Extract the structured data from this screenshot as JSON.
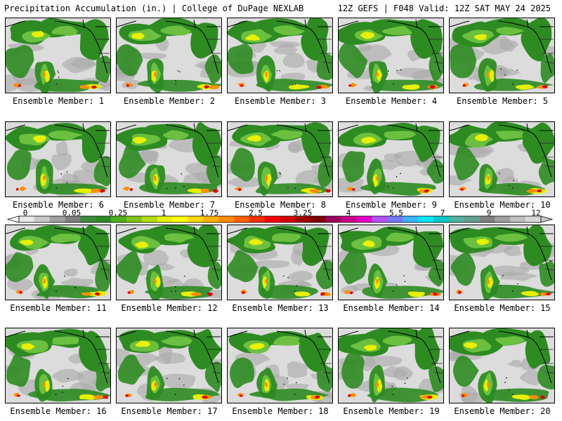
{
  "header": {
    "left": "Precipitation Accumulation (in.) | College of DuPage NEXLAB",
    "right": "12Z GEFS | F048 Valid: 12Z SAT MAY 24 2025"
  },
  "panels": [
    {
      "label": "Ensemble Member: 1"
    },
    {
      "label": "Ensemble Member: 2"
    },
    {
      "label": "Ensemble Member: 3"
    },
    {
      "label": "Ensemble Member: 4"
    },
    {
      "label": "Ensemble Member: 5"
    },
    {
      "label": "Ensemble Member: 6"
    },
    {
      "label": "Ensemble Member: 7"
    },
    {
      "label": "Ensemble Member: 8"
    },
    {
      "label": "Ensemble Member: 9"
    },
    {
      "label": "Ensemble Member: 10"
    },
    {
      "label": "Ensemble Member: 11"
    },
    {
      "label": "Ensemble Member: 12"
    },
    {
      "label": "Ensemble Member: 13"
    },
    {
      "label": "Ensemble Member: 14"
    },
    {
      "label": "Ensemble Member: 15"
    },
    {
      "label": "Ensemble Member: 16"
    },
    {
      "label": "Ensemble Member: 17"
    },
    {
      "label": "Ensemble Member: 18"
    },
    {
      "label": "Ensemble Member: 19"
    },
    {
      "label": "Ensemble Member: 20"
    }
  ],
  "legend": {
    "labels": [
      "0",
      "0.05",
      "0.25",
      "1",
      "1.75",
      "2.5",
      "3.25",
      "4",
      "5.5",
      "7",
      "9",
      "12"
    ],
    "colors": [
      "#e8e8e8",
      "#c8c8c8",
      "#a0a0a0",
      "#808080",
      "#3c8c3c",
      "#2e8b22",
      "#4caf1e",
      "#7cc418",
      "#b4dc14",
      "#e6f00a",
      "#ffff00",
      "#ffd700",
      "#ffb000",
      "#ff8c00",
      "#ff6000",
      "#ff3000",
      "#ff0000",
      "#d00000",
      "#a00000",
      "#800000",
      "#a00060",
      "#c8008c",
      "#e600c8",
      "#b450ff",
      "#7878ff",
      "#3cb4ff",
      "#00e6ff",
      "#00c8c8",
      "#50b4a0",
      "#64a090",
      "#808080",
      "#a0a0a0",
      "#c0c0c0",
      "#d8d8d8"
    ]
  },
  "colors": {
    "background": "#ffffff",
    "no_precip": "#dcdcdc",
    "light": "#a9a9a9",
    "green": "#2e8b22",
    "light_green": "#6cc040",
    "yellow": "#e8f000",
    "orange": "#ff9000",
    "red": "#e00000",
    "magenta": "#c0008c"
  }
}
